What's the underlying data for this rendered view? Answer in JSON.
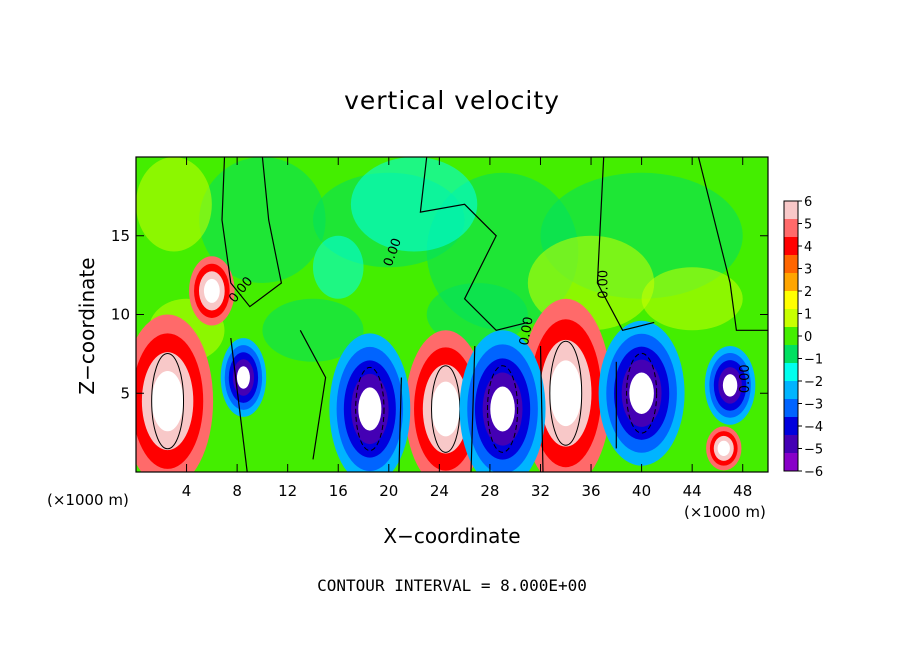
{
  "chart_data": {
    "type": "heatmap",
    "title": "vertical velocity",
    "xlabel": "X−coordinate",
    "ylabel": "Z−coordinate",
    "x_unit": "(×1000 m)",
    "xlim": [
      0,
      50
    ],
    "ylim": [
      0,
      20
    ],
    "x_ticks": [
      4,
      8,
      12,
      16,
      20,
      24,
      28,
      32,
      36,
      40,
      44,
      48
    ],
    "y_ticks": [
      5,
      10,
      15
    ],
    "contour_interval_label": "CONTOUR INTERVAL = 8.000E+00",
    "contour_label": "0.00",
    "colorbar": {
      "ticks": [
        6,
        5,
        4,
        3,
        2,
        1,
        0,
        -1,
        -2,
        -3,
        -4,
        -5,
        -6
      ],
      "tick_labels": [
        "6",
        "5",
        "4",
        "3",
        "2",
        "1",
        "0",
        "−1",
        "−2",
        "−3",
        "−4",
        "−5",
        "−6"
      ],
      "colors": [
        "#f8c8c8",
        "#ff6a6a",
        "#ff0000",
        "#ff6600",
        "#ffa500",
        "#ffff00",
        "#c8ff00",
        "#44ee00",
        "#00e060",
        "#00ffee",
        "#00b4ff",
        "#0064ff",
        "#0000dd",
        "#4400b4",
        "#8800c8"
      ]
    },
    "features": [
      {
        "kind": "updraft",
        "x": 2.5,
        "z": 4.5
      },
      {
        "kind": "updraft",
        "x": 24.5,
        "z": 4.0
      },
      {
        "kind": "updraft",
        "x": 34.0,
        "z": 5.0
      },
      {
        "kind": "updraft",
        "x": 6.0,
        "z": 11.5
      },
      {
        "kind": "updraft",
        "x": 46.5,
        "z": 1.5
      },
      {
        "kind": "downdraft",
        "x": 8.5,
        "z": 6.0
      },
      {
        "kind": "downdraft",
        "x": 18.5,
        "z": 4.0
      },
      {
        "kind": "downdraft",
        "x": 29.0,
        "z": 4.0
      },
      {
        "kind": "downdraft",
        "x": 40.0,
        "z": 5.0
      },
      {
        "kind": "downdraft",
        "x": 47.0,
        "z": 5.5
      }
    ]
  }
}
